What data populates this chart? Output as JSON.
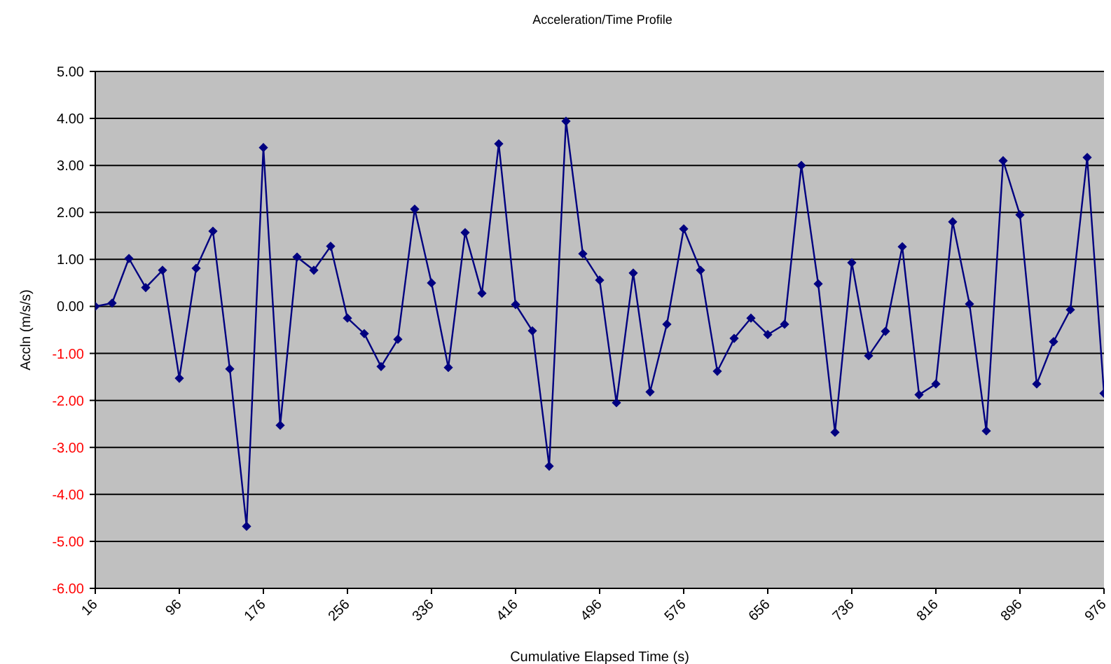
{
  "chart_data": {
    "type": "line",
    "title": "Acceleration/Time Profile",
    "xlabel": "Cumulative Elapsed Time (s)",
    "ylabel": "Accln (m/s/s)",
    "x": [
      16,
      32,
      48,
      64,
      80,
      96,
      112,
      128,
      144,
      160,
      176,
      192,
      208,
      224,
      240,
      256,
      272,
      288,
      304,
      320,
      336,
      352,
      368,
      384,
      400,
      416,
      432,
      448,
      464,
      480,
      496,
      512,
      528,
      544,
      560,
      576,
      592,
      608,
      624,
      640,
      656,
      672,
      688,
      704,
      720,
      736,
      752,
      768,
      784,
      800,
      816,
      832,
      848,
      864,
      880,
      896,
      912,
      928,
      944,
      960,
      976
    ],
    "series": [
      {
        "color": "#000080",
        "values": [
          0.0,
          0.07,
          1.02,
          0.4,
          0.77,
          -1.53,
          0.81,
          1.6,
          -1.33,
          -4.68,
          3.38,
          -2.53,
          1.05,
          0.77,
          1.28,
          -0.25,
          -0.58,
          -1.28,
          -0.7,
          2.07,
          0.5,
          -1.3,
          1.57,
          0.28,
          3.46,
          0.04,
          -0.52,
          -3.4,
          3.94,
          1.12,
          0.56,
          -2.05,
          0.71,
          -1.82,
          -0.38,
          1.65,
          0.77,
          -1.38,
          -0.68,
          -0.25,
          -0.6,
          -0.38,
          3.0,
          0.48,
          -2.68,
          0.93,
          -1.05,
          -0.53,
          1.27,
          -1.88,
          -1.65,
          1.8,
          0.05,
          -2.65,
          3.1,
          1.95,
          -1.65,
          -0.75,
          -0.07,
          3.17,
          -1.85
        ]
      }
    ],
    "xlim": [
      16,
      976
    ],
    "xticks": [
      16,
      96,
      176,
      256,
      336,
      416,
      496,
      576,
      656,
      736,
      816,
      896,
      976
    ],
    "ylim": [
      -6,
      5
    ],
    "yticks": [
      {
        "value": -6,
        "label": "-6.00"
      },
      {
        "value": -5,
        "label": "-5.00"
      },
      {
        "value": -4,
        "label": "-4.00"
      },
      {
        "value": -3,
        "label": "-3.00"
      },
      {
        "value": -2,
        "label": "-2.00"
      },
      {
        "value": -1,
        "label": "-1.00"
      },
      {
        "value": 0,
        "label": "0.00"
      },
      {
        "value": 1,
        "label": "1.00"
      },
      {
        "value": 2,
        "label": "2.00"
      },
      {
        "value": 3,
        "label": "3.00"
      },
      {
        "value": 4,
        "label": "4.00"
      },
      {
        "value": 5,
        "label": "5.00"
      }
    ],
    "grid": "y",
    "legend": false,
    "marker": "diamond",
    "line_style": "solid"
  }
}
